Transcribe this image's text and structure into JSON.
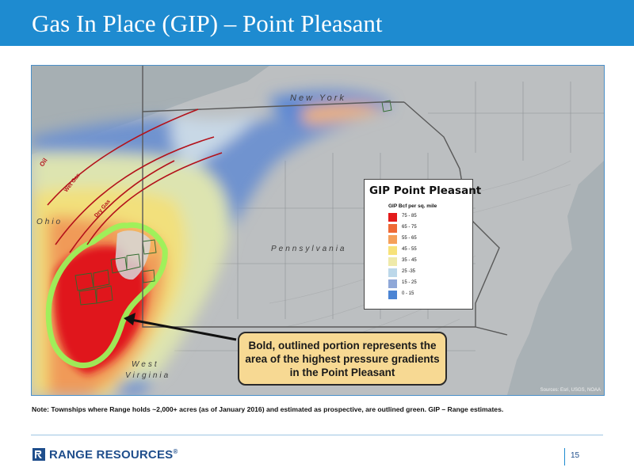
{
  "title": "Gas In Place (GIP) – Point Pleasant",
  "map": {
    "labels": {
      "new_york": "New York",
      "pennsylvania": "Pennsylvania",
      "ohio": "Ohio",
      "west_virginia": "West Virginia",
      "oil": "Oil",
      "wet_gas": "Wet Gas",
      "dry_gas": "Dry Gas"
    },
    "sources": "Sources: Esri, USGS, NOAA",
    "colors": {
      "water": "#a6afb3",
      "land": "#bcbfc1",
      "outline_green": "#9bf25a",
      "township_green": "#2e6b2c",
      "fault_red": "#b3121b",
      "state_line": "#595959"
    }
  },
  "legend": {
    "title": "GIP Point Pleasant",
    "subtitle": "GIP Bcf per sq. mile",
    "items": [
      {
        "label": "75 - 85",
        "color": "#e31b1b"
      },
      {
        "label": "65 - 75",
        "color": "#ef6a36"
      },
      {
        "label": "55 - 65",
        "color": "#f5a05a"
      },
      {
        "label": "45 - 55",
        "color": "#f7e27a"
      },
      {
        "label": "35 - 45",
        "color": "#efeaaa"
      },
      {
        "label": "25 -35",
        "color": "#bcd8ea"
      },
      {
        "label": "15 - 25",
        "color": "#8fa8d8"
      },
      {
        "label": "0 - 15",
        "color": "#4b84d4"
      }
    ]
  },
  "callout": {
    "text": "Bold, outlined portion represents the area of the highest pressure gradients in the Point Pleasant"
  },
  "note": "Note: Townships where Range holds ~2,000+ acres (as of January 2016) and estimated as prospective, are outlined green.  GIP – Range estimates.",
  "footer": {
    "company": "RANGE RESOURCES",
    "page_number": "15"
  }
}
